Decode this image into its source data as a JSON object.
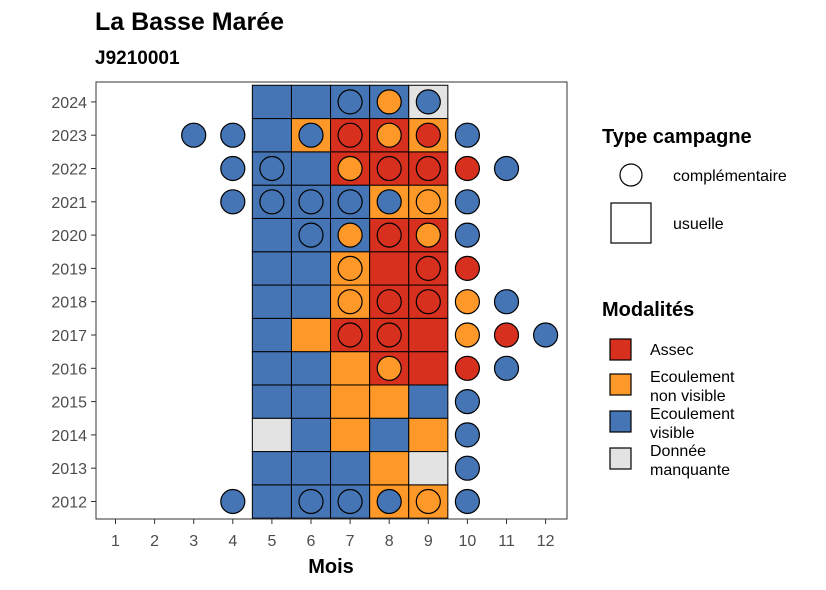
{
  "chart_data": {
    "type": "heatmap",
    "title": "La Basse Marée",
    "subtitle": "J9210001",
    "xlabel": "Mois",
    "ylabel": "",
    "x_ticks": [
      "1",
      "2",
      "3",
      "4",
      "5",
      "6",
      "7",
      "8",
      "9",
      "10",
      "11",
      "12"
    ],
    "y_ticks": [
      "2012",
      "2013",
      "2014",
      "2015",
      "2016",
      "2017",
      "2018",
      "2019",
      "2020",
      "2021",
      "2022",
      "2023",
      "2024"
    ],
    "usual_months_range": [
      5,
      9
    ],
    "colors": {
      "assec": "#d7301f",
      "ecoulement_non_visible": "#fe9929",
      "ecoulement_visible": "#4575b4",
      "donnee_manquante": "#e3e3e3"
    },
    "legend_type": {
      "title": "Type campagne",
      "items": [
        {
          "label": "complémentaire",
          "shape": "circle"
        },
        {
          "label": "usuelle",
          "shape": "square"
        }
      ]
    },
    "legend_modalites": {
      "title": "Modalités",
      "items": [
        {
          "key": "assec",
          "label": [
            "Assec"
          ]
        },
        {
          "key": "ecoulement_non_visible",
          "label": [
            "Ecoulement",
            "non visible"
          ]
        },
        {
          "key": "ecoulement_visible",
          "label": [
            "Ecoulement",
            "visible"
          ]
        },
        {
          "key": "donnee_manquante",
          "label": [
            "Donnée",
            "manquante"
          ]
        }
      ]
    },
    "usuelle": [
      {
        "year": 2012,
        "months": [
          "ecoulement_visible",
          "ecoulement_visible",
          "ecoulement_visible",
          "ecoulement_non_visible",
          "ecoulement_non_visible"
        ]
      },
      {
        "year": 2013,
        "months": [
          "ecoulement_visible",
          "ecoulement_visible",
          "ecoulement_visible",
          "ecoulement_non_visible",
          "donnee_manquante"
        ]
      },
      {
        "year": 2014,
        "months": [
          "donnee_manquante",
          "ecoulement_visible",
          "ecoulement_non_visible",
          "ecoulement_visible",
          "ecoulement_non_visible"
        ]
      },
      {
        "year": 2015,
        "months": [
          "ecoulement_visible",
          "ecoulement_visible",
          "ecoulement_non_visible",
          "ecoulement_non_visible",
          "ecoulement_visible"
        ]
      },
      {
        "year": 2016,
        "months": [
          "ecoulement_visible",
          "ecoulement_visible",
          "ecoulement_non_visible",
          "assec",
          "assec"
        ]
      },
      {
        "year": 2017,
        "months": [
          "ecoulement_visible",
          "ecoulement_non_visible",
          "assec",
          "assec",
          "assec"
        ]
      },
      {
        "year": 2018,
        "months": [
          "ecoulement_visible",
          "ecoulement_visible",
          "ecoulement_non_visible",
          "assec",
          "assec"
        ]
      },
      {
        "year": 2019,
        "months": [
          "ecoulement_visible",
          "ecoulement_visible",
          "ecoulement_non_visible",
          "assec",
          "assec"
        ]
      },
      {
        "year": 2020,
        "months": [
          "ecoulement_visible",
          "ecoulement_visible",
          "ecoulement_visible",
          "assec",
          "assec"
        ]
      },
      {
        "year": 2021,
        "months": [
          "ecoulement_visible",
          "ecoulement_visible",
          "ecoulement_visible",
          "ecoulement_non_visible",
          "ecoulement_non_visible"
        ]
      },
      {
        "year": 2022,
        "months": [
          "ecoulement_visible",
          "ecoulement_visible",
          "assec",
          "assec",
          "assec"
        ]
      },
      {
        "year": 2023,
        "months": [
          "ecoulement_visible",
          "ecoulement_non_visible",
          "assec",
          "assec",
          "ecoulement_non_visible"
        ]
      },
      {
        "year": 2024,
        "months": [
          "ecoulement_visible",
          "ecoulement_visible",
          "ecoulement_visible",
          "ecoulement_visible",
          "donnee_manquante"
        ]
      }
    ],
    "complementaire": [
      {
        "year": 2012,
        "month": 4,
        "value": "ecoulement_visible"
      },
      {
        "year": 2012,
        "month": 6,
        "value": "ecoulement_visible"
      },
      {
        "year": 2012,
        "month": 7,
        "value": "ecoulement_visible"
      },
      {
        "year": 2012,
        "month": 8,
        "value": "ecoulement_visible"
      },
      {
        "year": 2012,
        "month": 9,
        "value": "ecoulement_non_visible"
      },
      {
        "year": 2012,
        "month": 10,
        "value": "ecoulement_visible"
      },
      {
        "year": 2013,
        "month": 10,
        "value": "ecoulement_visible"
      },
      {
        "year": 2014,
        "month": 10,
        "value": "ecoulement_visible"
      },
      {
        "year": 2015,
        "month": 10,
        "value": "ecoulement_visible"
      },
      {
        "year": 2016,
        "month": 8,
        "value": "ecoulement_non_visible"
      },
      {
        "year": 2016,
        "month": 10,
        "value": "assec"
      },
      {
        "year": 2016,
        "month": 11,
        "value": "ecoulement_visible"
      },
      {
        "year": 2017,
        "month": 7,
        "value": "assec"
      },
      {
        "year": 2017,
        "month": 8,
        "value": "assec"
      },
      {
        "year": 2017,
        "month": 10,
        "value": "ecoulement_non_visible"
      },
      {
        "year": 2017,
        "month": 11,
        "value": "assec"
      },
      {
        "year": 2017,
        "month": 12,
        "value": "ecoulement_visible"
      },
      {
        "year": 2018,
        "month": 7,
        "value": "ecoulement_non_visible"
      },
      {
        "year": 2018,
        "month": 8,
        "value": "assec"
      },
      {
        "year": 2018,
        "month": 9,
        "value": "assec"
      },
      {
        "year": 2018,
        "month": 10,
        "value": "ecoulement_non_visible"
      },
      {
        "year": 2018,
        "month": 11,
        "value": "ecoulement_visible"
      },
      {
        "year": 2019,
        "month": 7,
        "value": "ecoulement_non_visible"
      },
      {
        "year": 2019,
        "month": 9,
        "value": "assec"
      },
      {
        "year": 2019,
        "month": 10,
        "value": "assec"
      },
      {
        "year": 2020,
        "month": 6,
        "value": "ecoulement_visible"
      },
      {
        "year": 2020,
        "month": 7,
        "value": "ecoulement_non_visible"
      },
      {
        "year": 2020,
        "month": 8,
        "value": "assec"
      },
      {
        "year": 2020,
        "month": 9,
        "value": "ecoulement_non_visible"
      },
      {
        "year": 2020,
        "month": 10,
        "value": "ecoulement_visible"
      },
      {
        "year": 2021,
        "month": 4,
        "value": "ecoulement_visible"
      },
      {
        "year": 2021,
        "month": 5,
        "value": "ecoulement_visible"
      },
      {
        "year": 2021,
        "month": 6,
        "value": "ecoulement_visible"
      },
      {
        "year": 2021,
        "month": 7,
        "value": "ecoulement_visible"
      },
      {
        "year": 2021,
        "month": 8,
        "value": "ecoulement_visible"
      },
      {
        "year": 2021,
        "month": 9,
        "value": "ecoulement_non_visible"
      },
      {
        "year": 2021,
        "month": 10,
        "value": "ecoulement_visible"
      },
      {
        "year": 2022,
        "month": 4,
        "value": "ecoulement_visible"
      },
      {
        "year": 2022,
        "month": 5,
        "value": "ecoulement_visible"
      },
      {
        "year": 2022,
        "month": 7,
        "value": "ecoulement_non_visible"
      },
      {
        "year": 2022,
        "month": 8,
        "value": "assec"
      },
      {
        "year": 2022,
        "month": 9,
        "value": "assec"
      },
      {
        "year": 2022,
        "month": 10,
        "value": "assec"
      },
      {
        "year": 2022,
        "month": 11,
        "value": "ecoulement_visible"
      },
      {
        "year": 2023,
        "month": 3,
        "value": "ecoulement_visible"
      },
      {
        "year": 2023,
        "month": 4,
        "value": "ecoulement_visible"
      },
      {
        "year": 2023,
        "month": 6,
        "value": "ecoulement_visible"
      },
      {
        "year": 2023,
        "month": 7,
        "value": "assec"
      },
      {
        "year": 2023,
        "month": 8,
        "value": "ecoulement_non_visible"
      },
      {
        "year": 2023,
        "month": 9,
        "value": "assec"
      },
      {
        "year": 2023,
        "month": 10,
        "value": "ecoulement_visible"
      },
      {
        "year": 2024,
        "month": 7,
        "value": "ecoulement_visible"
      },
      {
        "year": 2024,
        "month": 8,
        "value": "ecoulement_non_visible"
      },
      {
        "year": 2024,
        "month": 9,
        "value": "ecoulement_visible"
      }
    ]
  }
}
